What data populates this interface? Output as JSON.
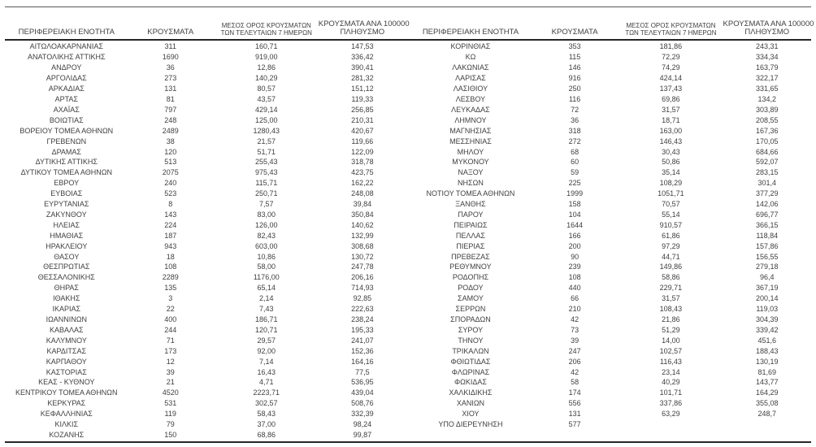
{
  "colors": {
    "text": "#3f3f3f",
    "rule": "#262626",
    "top_line": "#595959",
    "background": "#ffffff"
  },
  "columns": {
    "c1": "ΠΕΡΙΦΕΡΕΙΑΚΗ ΕΝΟΤΗΤΑ",
    "c2": "ΚΡΟΥΣΜΑΤΑ",
    "c3_line1": "ΜΕΣΟΣ ΟΡΟΣ ΚΡΟΥΣΜΑΤΩΝ",
    "c3_line2": "ΤΩΝ ΤΕΛΕΥΤΑΙΩΝ 7 ΗΜΕΡΩΝ",
    "c4_line1": "ΚΡΟΥΣΜΑΤΑ ΑΝΑ 100000",
    "c4_line2": "ΠΛΗΘΥΣΜΟ"
  },
  "chart_data": {
    "type": "table",
    "title": "",
    "column_headers": [
      "ΠΕΡΙΦΕΡΕΙΑΚΗ ΕΝΟΤΗΤΑ",
      "ΚΡΟΥΣΜΑΤΑ",
      "ΜΕΣΟΣ ΟΡΟΣ ΚΡΟΥΣΜΑΤΩΝ ΤΩΝ ΤΕΛΕΥΤΑΙΩΝ 7 ΗΜΕΡΩΝ",
      "ΚΡΟΥΣΜΑΤΑ ΑΝΑ 100000 ΠΛΗΘΥΣΜΟ"
    ]
  },
  "tables": {
    "left": {
      "rows": [
        [
          "ΑΙΤΩΛΟΑΚΑΡΝΑΝΙΑΣ",
          "311",
          "160,71",
          "147,53"
        ],
        [
          "ΑΝΑΤΟΛΙΚΗΣ ΑΤΤΙΚΗΣ",
          "1690",
          "919,00",
          "336,42"
        ],
        [
          "ΑΝΔΡΟΥ",
          "36",
          "12,86",
          "390,41"
        ],
        [
          "ΑΡΓΟΛΙΔΑΣ",
          "273",
          "140,29",
          "281,32"
        ],
        [
          "ΑΡΚΑΔΙΑΣ",
          "131",
          "80,57",
          "151,12"
        ],
        [
          "ΑΡΤΑΣ",
          "81",
          "43,57",
          "119,33"
        ],
        [
          "ΑΧΑΪΑΣ",
          "797",
          "429,14",
          "256,85"
        ],
        [
          "ΒΟΙΩΤΙΑΣ",
          "248",
          "125,00",
          "210,31"
        ],
        [
          "ΒΟΡΕΙΟΥ ΤΟΜΕΑ ΑΘΗΝΩΝ",
          "2489",
          "1280,43",
          "420,67"
        ],
        [
          "ΓΡΕΒΕΝΩΝ",
          "38",
          "21,57",
          "119,66"
        ],
        [
          "ΔΡΑΜΑΣ",
          "120",
          "51,71",
          "122,09"
        ],
        [
          "ΔΥΤΙΚΗΣ ΑΤΤΙΚΗΣ",
          "513",
          "255,43",
          "318,78"
        ],
        [
          "ΔΥΤΙΚΟΥ ΤΟΜΕΑ ΑΘΗΝΩΝ",
          "2075",
          "975,43",
          "423,75"
        ],
        [
          "ΕΒΡΟΥ",
          "240",
          "115,71",
          "162,22"
        ],
        [
          "ΕΥΒΟΙΑΣ",
          "523",
          "250,71",
          "248,08"
        ],
        [
          "ΕΥΡΥΤΑΝΙΑΣ",
          "8",
          "7,57",
          "39,84"
        ],
        [
          "ΖΑΚΥΝΘΟΥ",
          "143",
          "83,00",
          "350,84"
        ],
        [
          "ΗΛΕΙΑΣ",
          "224",
          "126,00",
          "140,62"
        ],
        [
          "ΗΜΑΘΙΑΣ",
          "187",
          "82,43",
          "132,99"
        ],
        [
          "ΗΡΑΚΛΕΙΟΥ",
          "943",
          "603,00",
          "308,68"
        ],
        [
          "ΘΑΣΟΥ",
          "18",
          "10,86",
          "130,72"
        ],
        [
          "ΘΕΣΠΡΩΤΙΑΣ",
          "108",
          "58,00",
          "247,78"
        ],
        [
          "ΘΕΣΣΑΛΟΝΙΚΗΣ",
          "2289",
          "1176,00",
          "206,16"
        ],
        [
          "ΘΗΡΑΣ",
          "135",
          "65,14",
          "714,93"
        ],
        [
          "ΙΘΑΚΗΣ",
          "3",
          "2,14",
          "92,85"
        ],
        [
          "ΙΚΑΡΙΑΣ",
          "22",
          "7,43",
          "222,63"
        ],
        [
          "ΙΩΑΝΝΙΝΩΝ",
          "400",
          "186,71",
          "238,24"
        ],
        [
          "ΚΑΒΑΛΑΣ",
          "244",
          "120,71",
          "195,33"
        ],
        [
          "ΚΑΛΥΜΝΟΥ",
          "71",
          "29,57",
          "241,07"
        ],
        [
          "ΚΑΡΔΙΤΣΑΣ",
          "173",
          "92,00",
          "152,36"
        ],
        [
          "ΚΑΡΠΑΘΟΥ",
          "12",
          "7,14",
          "164,16"
        ],
        [
          "ΚΑΣΤΟΡΙΑΣ",
          "39",
          "16,43",
          "77,5"
        ],
        [
          "ΚΕΑΣ - ΚΥΘΝΟΥ",
          "21",
          "4,71",
          "536,95"
        ],
        [
          "ΚΕΝΤΡΙΚΟΥ ΤΟΜΕΑ ΑΘΗΝΩΝ",
          "4520",
          "2223,71",
          "439,04"
        ],
        [
          "ΚΕΡΚΥΡΑΣ",
          "531",
          "302,57",
          "508,76"
        ],
        [
          "ΚΕΦΑΛΛΗΝΙΑΣ",
          "119",
          "58,43",
          "332,39"
        ],
        [
          "ΚΙΛΚΙΣ",
          "79",
          "37,00",
          "98,24"
        ],
        [
          "ΚΟΖΑΝΗΣ",
          "150",
          "68,86",
          "99,87"
        ]
      ]
    },
    "right": {
      "rows": [
        [
          "ΚΟΡΙΝΘΙΑΣ",
          "353",
          "181,86",
          "243,31"
        ],
        [
          "ΚΩ",
          "115",
          "72,29",
          "334,34"
        ],
        [
          "ΛΑΚΩΝΙΑΣ",
          "146",
          "74,29",
          "163,79"
        ],
        [
          "ΛΑΡΙΣΑΣ",
          "916",
          "424,14",
          "322,17"
        ],
        [
          "ΛΑΣΙΘΙΟΥ",
          "250",
          "137,43",
          "331,65"
        ],
        [
          "ΛΕΣΒΟΥ",
          "116",
          "69,86",
          "134,2"
        ],
        [
          "ΛΕΥΚΑΔΑΣ",
          "72",
          "31,57",
          "303,89"
        ],
        [
          "ΛΗΜΝΟΥ",
          "36",
          "18,71",
          "208,55"
        ],
        [
          "ΜΑΓΝΗΣΙΑΣ",
          "318",
          "163,00",
          "167,36"
        ],
        [
          "ΜΕΣΣΗΝΙΑΣ",
          "272",
          "146,43",
          "170,05"
        ],
        [
          "ΜΗΛΟΥ",
          "68",
          "30,43",
          "684,66"
        ],
        [
          "ΜΥΚΟΝΟΥ",
          "60",
          "50,86",
          "592,07"
        ],
        [
          "ΝΑΞΟΥ",
          "59",
          "35,14",
          "283,15"
        ],
        [
          "ΝΗΣΩΝ",
          "225",
          "108,29",
          "301,4"
        ],
        [
          "ΝΟΤΙΟΥ ΤΟΜΕΑ ΑΘΗΝΩΝ",
          "1999",
          "1051,71",
          "377,29"
        ],
        [
          "ΞΑΝΘΗΣ",
          "158",
          "70,57",
          "142,06"
        ],
        [
          "ΠΑΡΟΥ",
          "104",
          "55,14",
          "696,77"
        ],
        [
          "ΠΕΙΡΑΙΩΣ",
          "1644",
          "910,57",
          "366,15"
        ],
        [
          "ΠΕΛΛΑΣ",
          "166",
          "61,86",
          "118,84"
        ],
        [
          "ΠΙΕΡΙΑΣ",
          "200",
          "97,29",
          "157,86"
        ],
        [
          "ΠΡΕΒΕΖΑΣ",
          "90",
          "44,71",
          "156,55"
        ],
        [
          "ΡΕΘΥΜΝΟΥ",
          "239",
          "149,86",
          "279,18"
        ],
        [
          "ΡΟΔΟΠΗΣ",
          "108",
          "58,86",
          "96,4"
        ],
        [
          "ΡΟΔΟΥ",
          "440",
          "229,71",
          "367,19"
        ],
        [
          "ΣΑΜΟΥ",
          "66",
          "31,57",
          "200,14"
        ],
        [
          "ΣΕΡΡΩΝ",
          "210",
          "108,43",
          "119,03"
        ],
        [
          "ΣΠΟΡΑΔΩΝ",
          "42",
          "21,86",
          "304,39"
        ],
        [
          "ΣΥΡΟΥ",
          "73",
          "51,29",
          "339,42"
        ],
        [
          "ΤΗΝΟΥ",
          "39",
          "14,00",
          "451,6"
        ],
        [
          "ΤΡΙΚΑΛΩΝ",
          "247",
          "102,57",
          "188,43"
        ],
        [
          "ΦΘΙΩΤΙΔΑΣ",
          "206",
          "116,43",
          "130,19"
        ],
        [
          "ΦΛΩΡΙΝΑΣ",
          "42",
          "23,14",
          "81,69"
        ],
        [
          "ΦΩΚΙΔΑΣ",
          "58",
          "40,29",
          "143,77"
        ],
        [
          "ΧΑΛΚΙΔΙΚΗΣ",
          "174",
          "101,71",
          "164,29"
        ],
        [
          "ΧΑΝΙΩΝ",
          "556",
          "337,86",
          "355,08"
        ],
        [
          "ΧΙΟΥ",
          "131",
          "63,29",
          "248,7"
        ],
        [
          "ΥΠΟ ΔΙΕΡΕΥΝΗΣΗ",
          "577",
          "",
          ""
        ]
      ]
    }
  }
}
